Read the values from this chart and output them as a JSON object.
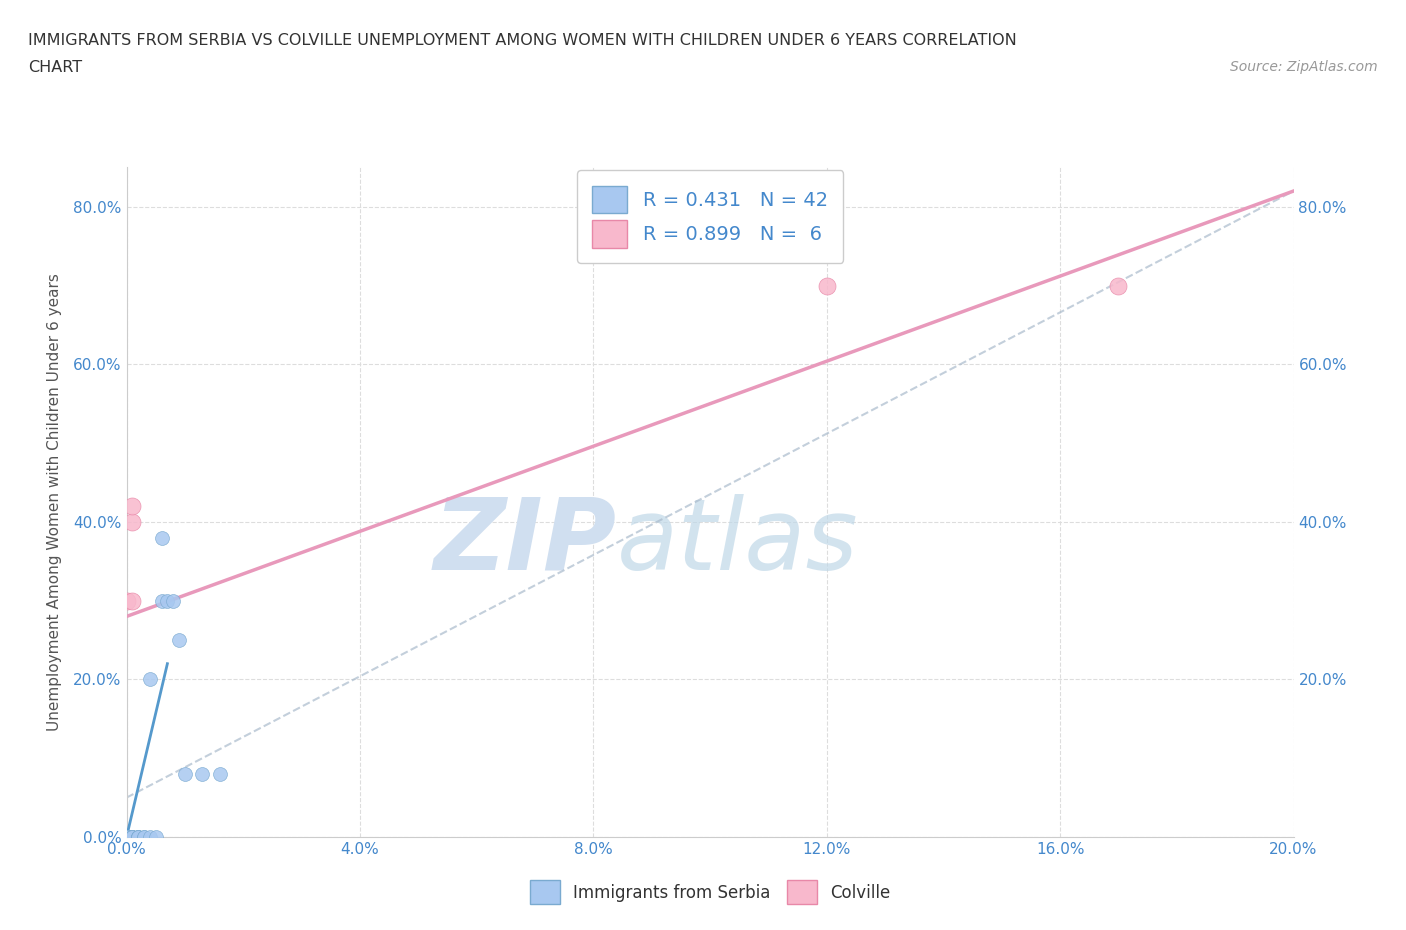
{
  "title_line1": "IMMIGRANTS FROM SERBIA VS COLVILLE UNEMPLOYMENT AMONG WOMEN WITH CHILDREN UNDER 6 YEARS CORRELATION",
  "title_line2": "CHART",
  "source": "Source: ZipAtlas.com",
  "ylabel": "Unemployment Among Women with Children Under 6 years",
  "xlim": [
    0.0,
    0.2
  ],
  "ylim": [
    0.0,
    0.85
  ],
  "xticks": [
    0.0,
    0.04,
    0.08,
    0.12,
    0.16,
    0.2
  ],
  "yticks": [
    0.0,
    0.2,
    0.4,
    0.6,
    0.8
  ],
  "xtick_labels": [
    "0.0%",
    "4.0%",
    "8.0%",
    "12.0%",
    "16.0%",
    "20.0%"
  ],
  "ytick_labels_left": [
    "0.0%",
    "20.0%",
    "40.0%",
    "60.0%",
    "80.0%"
  ],
  "ytick_labels_right": [
    "",
    "20.0%",
    "40.0%",
    "60.0%",
    "80.0%"
  ],
  "serbia_color": "#a8c8f0",
  "serbia_edge_color": "#7aaad0",
  "colville_color": "#f8b8cc",
  "colville_edge_color": "#e888a8",
  "serbia_R": 0.431,
  "serbia_N": 42,
  "colville_R": 0.899,
  "colville_N": 6,
  "serbia_points_x": [
    0.0,
    0.0,
    0.0,
    0.0,
    0.0,
    0.0,
    0.0,
    0.0,
    0.0,
    0.0,
    0.0,
    0.0,
    0.0,
    0.0,
    0.0,
    0.0,
    0.0,
    0.0,
    0.0,
    0.0,
    0.001,
    0.001,
    0.001,
    0.001,
    0.001,
    0.002,
    0.002,
    0.002,
    0.002,
    0.003,
    0.003,
    0.004,
    0.004,
    0.005,
    0.006,
    0.006,
    0.007,
    0.008,
    0.009,
    0.01,
    0.013,
    0.016
  ],
  "serbia_points_y": [
    0.0,
    0.0,
    0.0,
    0.0,
    0.0,
    0.0,
    0.0,
    0.0,
    0.0,
    0.0,
    0.0,
    0.0,
    0.0,
    0.0,
    0.0,
    0.0,
    0.0,
    0.0,
    0.0,
    0.0,
    0.0,
    0.0,
    0.0,
    0.0,
    0.0,
    0.0,
    0.0,
    0.0,
    0.0,
    0.0,
    0.0,
    0.2,
    0.0,
    0.0,
    0.3,
    0.38,
    0.3,
    0.3,
    0.25,
    0.08,
    0.08,
    0.08
  ],
  "colville_points_x": [
    0.0,
    0.001,
    0.001,
    0.001,
    0.12,
    0.17
  ],
  "colville_points_y": [
    0.3,
    0.4,
    0.42,
    0.3,
    0.7,
    0.7
  ],
  "serbia_line_x": [
    0.0,
    0.007
  ],
  "serbia_line_y": [
    0.0,
    0.22
  ],
  "serbia_dashed_line_x": [
    0.0,
    0.2
  ],
  "serbia_dashed_line_y": [
    0.05,
    0.82
  ],
  "colville_line_x": [
    0.0,
    0.2
  ],
  "colville_line_y": [
    0.28,
    0.82
  ],
  "watermark_zip": "ZIP",
  "watermark_atlas": "atlas",
  "watermark_color": "#d0dff0",
  "background_color": "#ffffff",
  "grid_color": "#dddddd",
  "title_color": "#333333",
  "axis_label_color": "#4488cc",
  "ylabel_color": "#555555"
}
